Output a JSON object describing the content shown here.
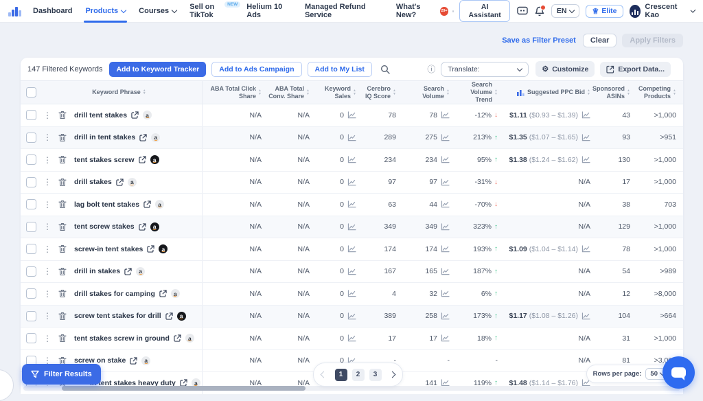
{
  "nav": {
    "items": [
      {
        "label": "Dashboard"
      },
      {
        "label": "Products"
      },
      {
        "label": "Courses"
      },
      {
        "label": "Sell on TikTok",
        "badge": "NEW"
      },
      {
        "label": "Helium 10 Ads"
      },
      {
        "label": "Managed Refund Service"
      }
    ],
    "whats_new": "What's New?",
    "whats_new_badge": "29+",
    "ai_assistant": "AI Assistant",
    "language": "EN",
    "plan": "Elite",
    "user_name": "Crescent Kao"
  },
  "filter_actions": {
    "save_preset": "Save as Filter Preset",
    "clear": "Clear",
    "apply": "Apply Filters"
  },
  "toolbar": {
    "count": "147 Filtered Keywords",
    "add_tracker": "Add to Keyword Tracker",
    "add_ads": "Add to Ads Campaign",
    "add_list": "Add to My List",
    "translate": "Translate:",
    "customize": "Customize",
    "export": "Export Data..."
  },
  "table": {
    "columns": [
      "Keyword Phrase",
      "ABA Total Click Share",
      "ABA Total Conv. Share",
      "Keyword Sales",
      "Cerebro IQ Score",
      "Search Volume",
      "Search Volume Trend",
      "Suggested PPC Bid",
      "Sponsored ASINs",
      "Competing Products"
    ],
    "rows": [
      {
        "keyword": "drill tent stakes",
        "badge": "light",
        "click": "N/A",
        "conv": "N/A",
        "sales": "0",
        "sales_chart": true,
        "iq": "78",
        "vol": "78",
        "vol_chart": true,
        "trend": "-12%",
        "trend_dir": "down",
        "ppc": "$1.11",
        "ppc_range": "($0.93 – $1.39)",
        "ppc_chart": true,
        "asins": "43",
        "comp": ">1,000",
        "shaded": false
      },
      {
        "keyword": "drill in tent stakes",
        "badge": "light",
        "click": "N/A",
        "conv": "N/A",
        "sales": "0",
        "sales_chart": true,
        "iq": "289",
        "vol": "275",
        "vol_chart": true,
        "trend": "213%",
        "trend_dir": "up",
        "ppc": "$1.35",
        "ppc_range": "($1.07 – $1.65)",
        "ppc_chart": true,
        "asins": "93",
        "comp": ">951",
        "shaded": true
      },
      {
        "keyword": "tent stakes screw",
        "badge": "dark",
        "click": "N/A",
        "conv": "N/A",
        "sales": "0",
        "sales_chart": true,
        "iq": "234",
        "vol": "234",
        "vol_chart": true,
        "trend": "95%",
        "trend_dir": "up",
        "ppc": "$1.38",
        "ppc_range": "($1.24 – $1.62)",
        "ppc_chart": true,
        "asins": "130",
        "comp": ">1,000",
        "shaded": false
      },
      {
        "keyword": "drill stakes",
        "badge": "light",
        "click": "N/A",
        "conv": "N/A",
        "sales": "0",
        "sales_chart": true,
        "iq": "97",
        "vol": "97",
        "vol_chart": true,
        "trend": "-31%",
        "trend_dir": "down",
        "ppc": "N/A",
        "ppc_range": "",
        "ppc_chart": false,
        "asins": "17",
        "comp": ">1,000",
        "shaded": false
      },
      {
        "keyword": "lag bolt tent stakes",
        "badge": "light",
        "click": "N/A",
        "conv": "N/A",
        "sales": "0",
        "sales_chart": true,
        "iq": "63",
        "vol": "44",
        "vol_chart": true,
        "trend": "-70%",
        "trend_dir": "down",
        "ppc": "N/A",
        "ppc_range": "",
        "ppc_chart": false,
        "asins": "38",
        "comp": "703",
        "shaded": false
      },
      {
        "keyword": "tent screw stakes",
        "badge": "dark",
        "click": "N/A",
        "conv": "N/A",
        "sales": "0",
        "sales_chart": true,
        "iq": "349",
        "vol": "349",
        "vol_chart": true,
        "trend": "323%",
        "trend_dir": "up",
        "ppc": "N/A",
        "ppc_range": "",
        "ppc_chart": false,
        "asins": "129",
        "comp": ">1,000",
        "shaded": true
      },
      {
        "keyword": "screw-in tent stakes",
        "badge": "dark",
        "click": "N/A",
        "conv": "N/A",
        "sales": "0",
        "sales_chart": true,
        "iq": "174",
        "vol": "174",
        "vol_chart": true,
        "trend": "193%",
        "trend_dir": "up",
        "ppc": "$1.09",
        "ppc_range": "($1.04 – $1.14)",
        "ppc_chart": true,
        "asins": "78",
        "comp": ">1,000",
        "shaded": false
      },
      {
        "keyword": "drill in stakes",
        "badge": "light",
        "click": "N/A",
        "conv": "N/A",
        "sales": "0",
        "sales_chart": true,
        "iq": "167",
        "vol": "165",
        "vol_chart": true,
        "trend": "187%",
        "trend_dir": "up",
        "ppc": "N/A",
        "ppc_range": "",
        "ppc_chart": false,
        "asins": "54",
        "comp": ">989",
        "shaded": false
      },
      {
        "keyword": "drill stakes for camping",
        "badge": "light",
        "click": "N/A",
        "conv": "N/A",
        "sales": "0",
        "sales_chart": true,
        "iq": "4",
        "vol": "32",
        "vol_chart": true,
        "trend": "6%",
        "trend_dir": "up",
        "ppc": "N/A",
        "ppc_range": "",
        "ppc_chart": false,
        "asins": "12",
        "comp": ">8,000",
        "shaded": false
      },
      {
        "keyword": "screw tent stakes for drill",
        "badge": "dark",
        "click": "N/A",
        "conv": "N/A",
        "sales": "0",
        "sales_chart": true,
        "iq": "389",
        "vol": "258",
        "vol_chart": true,
        "trend": "173%",
        "trend_dir": "up",
        "ppc": "$1.17",
        "ppc_range": "($1.08 – $1.26)",
        "ppc_chart": true,
        "asins": "104",
        "comp": ">664",
        "shaded": true
      },
      {
        "keyword": "tent stakes screw in ground",
        "badge": "light",
        "click": "N/A",
        "conv": "N/A",
        "sales": "0",
        "sales_chart": true,
        "iq": "17",
        "vol": "17",
        "vol_chart": true,
        "trend": "18%",
        "trend_dir": "up",
        "ppc": "N/A",
        "ppc_range": "",
        "ppc_chart": false,
        "asins": "31",
        "comp": ">1,000",
        "shaded": false
      },
      {
        "keyword": "screw on stake",
        "badge": "light",
        "click": "N/A",
        "conv": "N/A",
        "sales": "0",
        "sales_chart": true,
        "iq": "-",
        "vol": "-",
        "vol_chart": false,
        "trend": "-",
        "trend_dir": "",
        "ppc": "N/A",
        "ppc_range": "",
        "ppc_chart": false,
        "asins": "81",
        "comp": ">3,000",
        "shaded": false
      },
      {
        "keyword": "in tent stakes heavy duty",
        "badge": "light",
        "click": "N/A",
        "conv": "N/A",
        "sales": "",
        "sales_chart": false,
        "iq": "",
        "vol": "141",
        "vol_chart": true,
        "trend": "119%",
        "trend_dir": "up",
        "ppc": "$1.48",
        "ppc_range": "($1.14 – $1.76)",
        "ppc_chart": true,
        "asins": "",
        "comp": "",
        "shaded": false,
        "kw_offset": true
      }
    ]
  },
  "pagination": {
    "pages": [
      "1",
      "2",
      "3"
    ],
    "current": "1"
  },
  "rows_per_page": {
    "label": "Rows per page:",
    "value": "50"
  },
  "filter_results": "Filter Results",
  "colors": {
    "accent": "#3b6be6",
    "green": "#41c38c",
    "red": "#f0705f",
    "navy": "#3f4a63"
  }
}
